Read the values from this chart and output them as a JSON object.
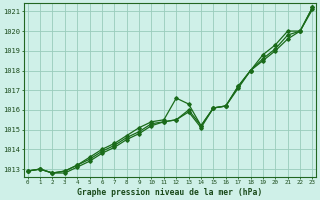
{
  "title": "Graphe pression niveau de la mer (hPa)",
  "bg_color": "#cff0e8",
  "grid_color": "#99ccbb",
  "line_color": "#1a6b1a",
  "ylabel_values": [
    1013,
    1014,
    1015,
    1016,
    1017,
    1018,
    1019,
    1020,
    1021
  ],
  "xlim": [
    -0.3,
    23.3
  ],
  "ylim": [
    1012.6,
    1021.4
  ],
  "line1_x": [
    0,
    1,
    2,
    3,
    4,
    5,
    6,
    7,
    8,
    9,
    10,
    11,
    12,
    13,
    14,
    15,
    16,
    17,
    18,
    19,
    20,
    21,
    22,
    23
  ],
  "line1_y": [
    1012.9,
    1013.0,
    1012.8,
    1012.8,
    1013.1,
    1013.4,
    1013.8,
    1014.1,
    1014.5,
    1014.8,
    1015.2,
    1015.4,
    1015.5,
    1016.0,
    1015.2,
    1016.1,
    1016.2,
    1017.1,
    1018.0,
    1018.5,
    1019.0,
    1019.6,
    1020.0,
    1021.1
  ],
  "line2_x": [
    0,
    1,
    2,
    3,
    4,
    5,
    6,
    7,
    8,
    9,
    10,
    11,
    12,
    13,
    14,
    15,
    16,
    17,
    18,
    19,
    20,
    21,
    22,
    23
  ],
  "line2_y": [
    1012.9,
    1013.0,
    1012.8,
    1012.9,
    1013.2,
    1013.6,
    1014.0,
    1014.3,
    1014.7,
    1015.1,
    1015.4,
    1015.5,
    1016.6,
    1016.3,
    1015.2,
    1016.1,
    1016.2,
    1017.2,
    1018.0,
    1018.8,
    1019.3,
    1020.0,
    1020.0,
    1021.2
  ],
  "line3_x": [
    0,
    1,
    2,
    3,
    4,
    5,
    6,
    7,
    8,
    9,
    10,
    11,
    12,
    13,
    14,
    15,
    16,
    17,
    18,
    19,
    20,
    21,
    22,
    23
  ],
  "line3_y": [
    1012.9,
    1013.0,
    1012.8,
    1012.9,
    1013.2,
    1013.5,
    1013.9,
    1014.2,
    1014.6,
    1014.9,
    1015.3,
    1015.4,
    1015.5,
    1015.9,
    1015.1,
    1016.1,
    1016.2,
    1017.2,
    1018.0,
    1018.6,
    1019.1,
    1019.8,
    1020.0,
    1021.2
  ]
}
